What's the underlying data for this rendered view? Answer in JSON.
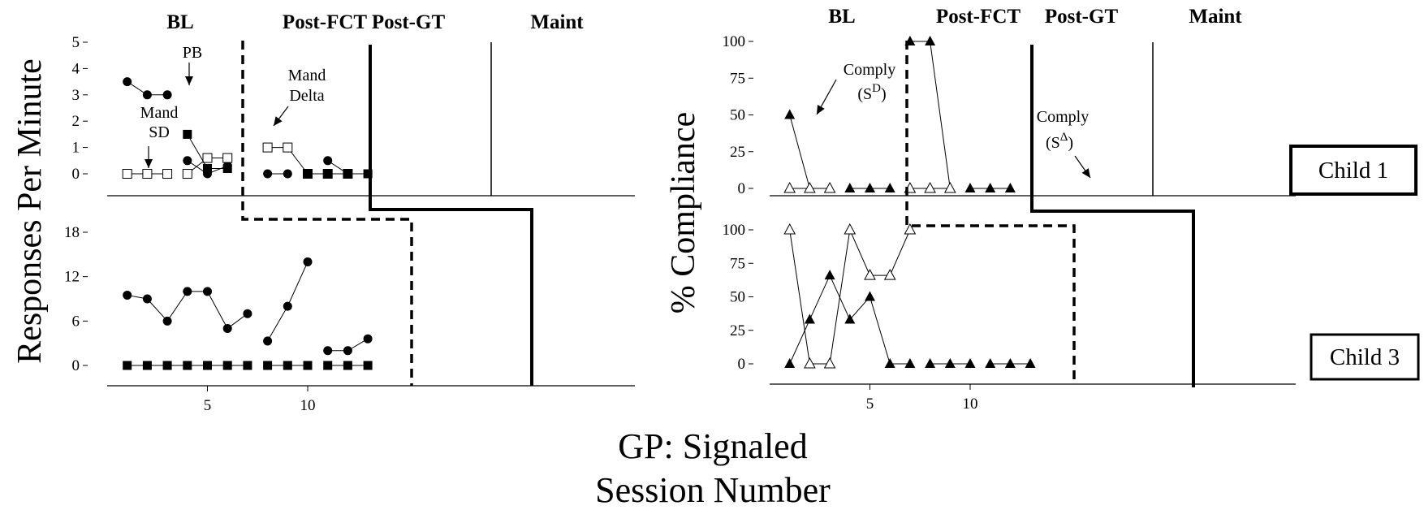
{
  "figure": {
    "footer": [
      "GP: Signaled",
      "Session Number"
    ],
    "phases": [
      "BL",
      "Post-FCT",
      "Post-GT",
      "Maint"
    ],
    "child_labels": [
      "Child 1",
      "Child 3"
    ]
  },
  "chart_data": [
    {
      "type": "line",
      "panel": "left-top",
      "ylabel": "Responses Per Minute",
      "ylim": [
        0,
        5
      ],
      "yticks": [
        0,
        1,
        2,
        3,
        4,
        5
      ],
      "xlim": [
        0,
        13
      ],
      "series": [
        {
          "name": "PB",
          "marker": "filled-circle",
          "segments": [
            [
              [
                1,
                3.5
              ],
              [
                2,
                3
              ],
              [
                3,
                3
              ]
            ],
            [
              [
                4,
                0.5
              ],
              [
                5,
                0
              ],
              [
                6,
                0.3
              ]
            ],
            [
              [
                8,
                0
              ],
              [
                9,
                0
              ]
            ],
            [
              [
                11,
                0.5
              ],
              [
                12,
                0
              ]
            ]
          ]
        },
        {
          "name": "Mand SD",
          "marker": "open-square",
          "segments": [
            [
              [
                1,
                0
              ],
              [
                2,
                0
              ],
              [
                3,
                0
              ]
            ],
            [
              [
                4,
                0
              ],
              [
                5,
                0.6
              ],
              [
                6,
                0.6
              ]
            ],
            [
              [
                8,
                1
              ],
              [
                9,
                1
              ],
              [
                10,
                0
              ]
            ],
            [
              [
                11,
                0
              ],
              [
                12,
                0
              ]
            ]
          ]
        },
        {
          "name": "Mand Delta",
          "marker": "filled-square",
          "segments": [
            [
              [
                4,
                1.5
              ],
              [
                5,
                0.2
              ],
              [
                6,
                0.2
              ]
            ],
            [
              [
                10,
                0
              ],
              [
                11,
                0
              ],
              [
                12,
                0
              ],
              [
                13,
                0
              ]
            ]
          ]
        }
      ]
    },
    {
      "type": "line",
      "panel": "left-bottom",
      "ylim": [
        0,
        18
      ],
      "yticks": [
        0,
        6,
        12,
        18
      ],
      "xticks": [
        5,
        10
      ],
      "xlim": [
        0,
        13
      ],
      "series": [
        {
          "marker": "filled-circle",
          "segments": [
            [
              [
                1,
                9.5
              ],
              [
                2,
                9
              ],
              [
                3,
                6
              ],
              [
                4,
                10
              ],
              [
                5,
                10
              ],
              [
                6,
                5
              ],
              [
                7,
                7
              ]
            ],
            [
              [
                8,
                3.3
              ],
              [
                9,
                8
              ],
              [
                10,
                14
              ]
            ],
            [
              [
                11,
                2
              ],
              [
                12,
                2
              ],
              [
                13,
                3.6
              ]
            ]
          ]
        },
        {
          "marker": "filled-square",
          "segments": [
            [
              [
                1,
                0
              ],
              [
                2,
                0
              ],
              [
                3,
                0
              ],
              [
                4,
                0
              ],
              [
                5,
                0
              ],
              [
                6,
                0
              ],
              [
                7,
                0
              ]
            ],
            [
              [
                8,
                0
              ],
              [
                9,
                0
              ],
              [
                10,
                0
              ]
            ],
            [
              [
                11,
                0
              ],
              [
                12,
                0
              ],
              [
                13,
                0
              ]
            ]
          ]
        }
      ]
    },
    {
      "type": "line",
      "panel": "right-top",
      "ylabel": "% Compliance",
      "ylim": [
        0,
        100
      ],
      "yticks": [
        0,
        25,
        50,
        75,
        100
      ],
      "xlim": [
        0,
        13
      ],
      "annotations": [
        {
          "text": "Comply",
          "sub": "(S",
          "sup": "D"
        },
        {
          "text": "Comply",
          "sub": "(S",
          "sup": "Δ"
        }
      ],
      "series": [
        {
          "name": "Comply (SD)",
          "marker": "filled-triangle",
          "segments": [
            [
              [
                1,
                50
              ],
              [
                2,
                0
              ],
              [
                3,
                0
              ]
            ],
            [
              [
                4,
                0
              ],
              [
                5,
                0
              ],
              [
                6,
                0
              ]
            ],
            [
              [
                7,
                100
              ],
              [
                8,
                100
              ],
              [
                9,
                0
              ]
            ],
            [
              [
                10,
                0
              ],
              [
                11,
                0
              ],
              [
                12,
                0
              ]
            ]
          ]
        },
        {
          "name": "Comply (SΔ)",
          "marker": "open-triangle",
          "segments": [
            [
              [
                1,
                0
              ],
              [
                2,
                0
              ],
              [
                3,
                0
              ]
            ],
            [
              [
                7,
                0
              ],
              [
                8,
                0
              ],
              [
                9,
                0
              ]
            ]
          ]
        }
      ]
    },
    {
      "type": "line",
      "panel": "right-bottom",
      "ylim": [
        0,
        100
      ],
      "yticks": [
        0,
        25,
        50,
        75,
        100
      ],
      "xticks": [
        5,
        10
      ],
      "xlim": [
        0,
        13
      ],
      "series": [
        {
          "marker": "filled-triangle",
          "segments": [
            [
              [
                1,
                0
              ],
              [
                2,
                33
              ],
              [
                3,
                66
              ],
              [
                4,
                33
              ],
              [
                5,
                50
              ],
              [
                6,
                0
              ],
              [
                7,
                0
              ]
            ],
            [
              [
                8,
                0
              ],
              [
                9,
                0
              ],
              [
                10,
                0
              ]
            ],
            [
              [
                11,
                0
              ],
              [
                12,
                0
              ],
              [
                13,
                0
              ]
            ]
          ]
        },
        {
          "marker": "open-triangle",
          "segments": [
            [
              [
                1,
                100
              ],
              [
                2,
                0
              ],
              [
                3,
                0
              ],
              [
                4,
                100
              ],
              [
                5,
                66
              ],
              [
                6,
                66
              ],
              [
                7,
                100
              ]
            ]
          ]
        }
      ]
    }
  ]
}
